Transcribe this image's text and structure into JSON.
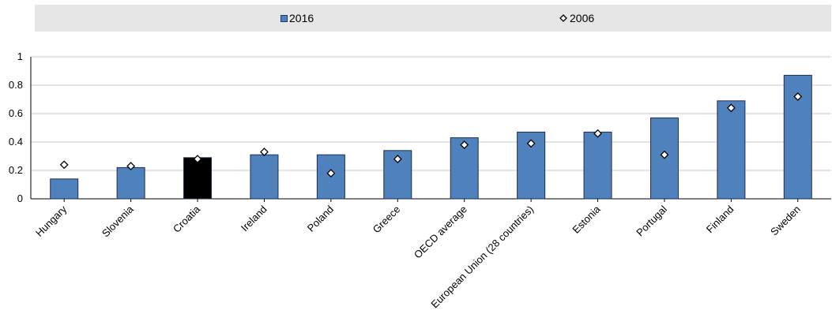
{
  "colors": {
    "bar": "#4f81bd",
    "bar_highlight": "#000000",
    "bar_stroke": "#1f2f4f",
    "marker_fill": "#ffffff",
    "marker_stroke": "#000000",
    "grid": "#c8c8c8",
    "legend_bg": "#e6e6e6"
  },
  "legend": {
    "series_2016": "2016",
    "series_2006": "2006"
  },
  "chart_data": {
    "type": "bar",
    "categories": [
      "Hungary",
      "Slovenia",
      "Croatia",
      "Ireland",
      "Poland",
      "Greece",
      "OECD average",
      "European Union (28 countries)",
      "Estonia",
      "Portugal",
      "Finland",
      "Sweden"
    ],
    "highlight_category": "Croatia",
    "series": [
      {
        "name": "2016",
        "mark": "bar",
        "values": [
          0.14,
          0.22,
          0.29,
          0.31,
          0.31,
          0.34,
          0.43,
          0.47,
          0.47,
          0.57,
          0.69,
          0.87
        ]
      },
      {
        "name": "2006",
        "mark": "diamond",
        "values": [
          0.24,
          0.23,
          0.28,
          0.33,
          0.18,
          0.28,
          0.38,
          0.39,
          0.46,
          0.31,
          0.64,
          0.72
        ]
      }
    ],
    "yticks": [
      "0",
      "0.2",
      "0.4",
      "0.6",
      "0.8",
      "1"
    ],
    "ylim": [
      0,
      1
    ],
    "grid": true,
    "legend_position": "top",
    "title": "",
    "xlabel": "",
    "ylabel": ""
  }
}
